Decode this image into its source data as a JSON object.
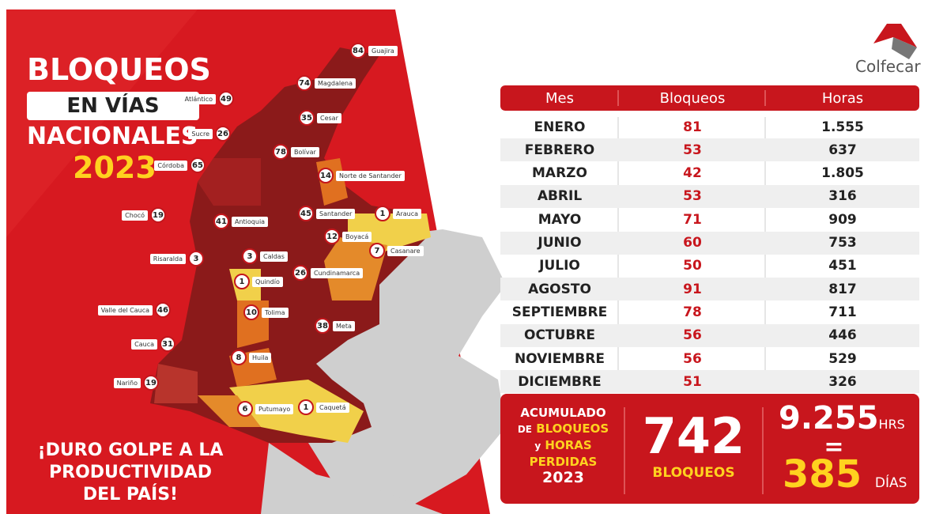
{
  "header": {
    "title": "BLOQUEOS",
    "subtitle_1": "EN VÍAS",
    "subtitle_2": "NACIONALES",
    "year": "2023",
    "tagline": [
      "¡DURO GOLPE A LA",
      "PRODUCTIVIDAD",
      "DEL PAÍS!"
    ]
  },
  "logo": "Colfecar",
  "map": {
    "pins": [
      {
        "label": "Guajira",
        "value": "84"
      },
      {
        "label": "Magdalena",
        "value": "74"
      },
      {
        "label": "Atlántico",
        "value": "49"
      },
      {
        "label": "Cesar",
        "value": "35"
      },
      {
        "label": "Sucre",
        "value": "26"
      },
      {
        "label": "Bolívar",
        "value": "78"
      },
      {
        "label": "Córdoba",
        "value": "65"
      },
      {
        "label": "Norte de Santander",
        "value": "14"
      },
      {
        "label": "Chocó",
        "value": "19"
      },
      {
        "label": "Antioquia",
        "value": "41"
      },
      {
        "label": "Santander",
        "value": "45"
      },
      {
        "label": "Arauca",
        "value": "1"
      },
      {
        "label": "Boyacá",
        "value": "12"
      },
      {
        "label": "Casanare",
        "value": "7"
      },
      {
        "label": "Risaralda",
        "value": "3"
      },
      {
        "label": "Caldas",
        "value": "3"
      },
      {
        "label": "Quindío",
        "value": "1"
      },
      {
        "label": "Cundinamarca",
        "value": "26"
      },
      {
        "label": "Valle del Cauca",
        "value": "46"
      },
      {
        "label": "Tolima",
        "value": "10"
      },
      {
        "label": "Meta",
        "value": "38"
      },
      {
        "label": "Cauca",
        "value": "31"
      },
      {
        "label": "Huila",
        "value": "8"
      },
      {
        "label": "Nariño",
        "value": "19"
      },
      {
        "label": "Putumayo",
        "value": "6"
      },
      {
        "label": "Caquetá",
        "value": "1"
      }
    ]
  },
  "table": {
    "columns": [
      "Mes",
      "Bloqueos",
      "Horas"
    ],
    "rows": [
      [
        "ENERO",
        "81",
        "1.555"
      ],
      [
        "FEBRERO",
        "53",
        "637"
      ],
      [
        "MARZO",
        "42",
        "1.805"
      ],
      [
        "ABRIL",
        "53",
        "316"
      ],
      [
        "MAYO",
        "71",
        "909"
      ],
      [
        "JUNIO",
        "60",
        "753"
      ],
      [
        "JULIO",
        "50",
        "451"
      ],
      [
        "AGOSTO",
        "91",
        "817"
      ],
      [
        "SEPTIEMBRE",
        "78",
        "711"
      ],
      [
        "OCTUBRE",
        "56",
        "446"
      ],
      [
        "NOVIEMBRE",
        "56",
        "529"
      ],
      [
        "DICIEMBRE",
        "51",
        "326"
      ]
    ]
  },
  "summary": {
    "label_1": "ACUMULADO",
    "label_2a": "DE",
    "label_2b": "BLOQUEOS",
    "label_3a": "y",
    "label_3b": "HORAS",
    "label_4": "PERDIDAS",
    "label_5": "2023",
    "total": "742",
    "total_unit": "BLOQUEOS",
    "hours": "9.255",
    "hours_unit": "HRS",
    "equals": "=",
    "days": "385",
    "days_unit": "DÍAS"
  }
}
